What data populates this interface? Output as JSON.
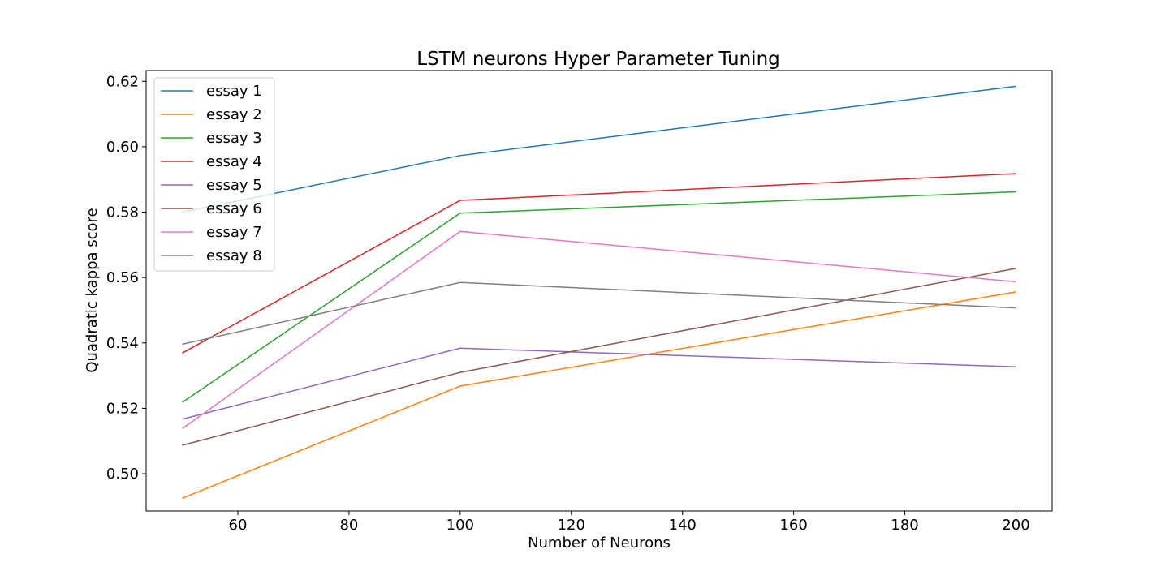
{
  "chart_data": {
    "type": "line",
    "title": "LSTM neurons Hyper Parameter Tuning",
    "xlabel": "Number of Neurons",
    "ylabel": "Quadratic kappa score",
    "x": [
      50,
      100,
      200
    ],
    "xlim": [
      43.5,
      206.5
    ],
    "ylim": [
      0.4886,
      0.6233
    ],
    "xticks": [
      60,
      80,
      100,
      120,
      140,
      160,
      180,
      200
    ],
    "xtick_labels": [
      "60",
      "80",
      "100",
      "120",
      "140",
      "160",
      "180",
      "200"
    ],
    "yticks": [
      0.5,
      0.52,
      0.54,
      0.56,
      0.58,
      0.6,
      0.62
    ],
    "ytick_labels": [
      "0.50",
      "0.52",
      "0.54",
      "0.56",
      "0.58",
      "0.60",
      "0.62"
    ],
    "grid": false,
    "legend_position": "top-left",
    "series": [
      {
        "name": "essay 1",
        "color": "#1f77b4",
        "values": [
          0.58,
          0.5973,
          0.6185
        ]
      },
      {
        "name": "essay 2",
        "color": "#ff7f0e",
        "values": [
          0.4925,
          0.5268,
          0.5556
        ]
      },
      {
        "name": "essay 3",
        "color": "#2ca02c",
        "values": [
          0.5218,
          0.5797,
          0.5862
        ]
      },
      {
        "name": "essay 4",
        "color": "#d62728",
        "values": [
          0.5369,
          0.5836,
          0.5918
        ]
      },
      {
        "name": "essay 5",
        "color": "#9467bd",
        "values": [
          0.5167,
          0.5384,
          0.5327
        ]
      },
      {
        "name": "essay 6",
        "color": "#8c564b",
        "values": [
          0.5087,
          0.531,
          0.5628
        ]
      },
      {
        "name": "essay 7",
        "color": "#e377c2",
        "values": [
          0.5138,
          0.5741,
          0.5587
        ]
      },
      {
        "name": "essay 8",
        "color": "#7f7f7f",
        "values": [
          0.5396,
          0.5585,
          0.5507
        ]
      }
    ]
  }
}
